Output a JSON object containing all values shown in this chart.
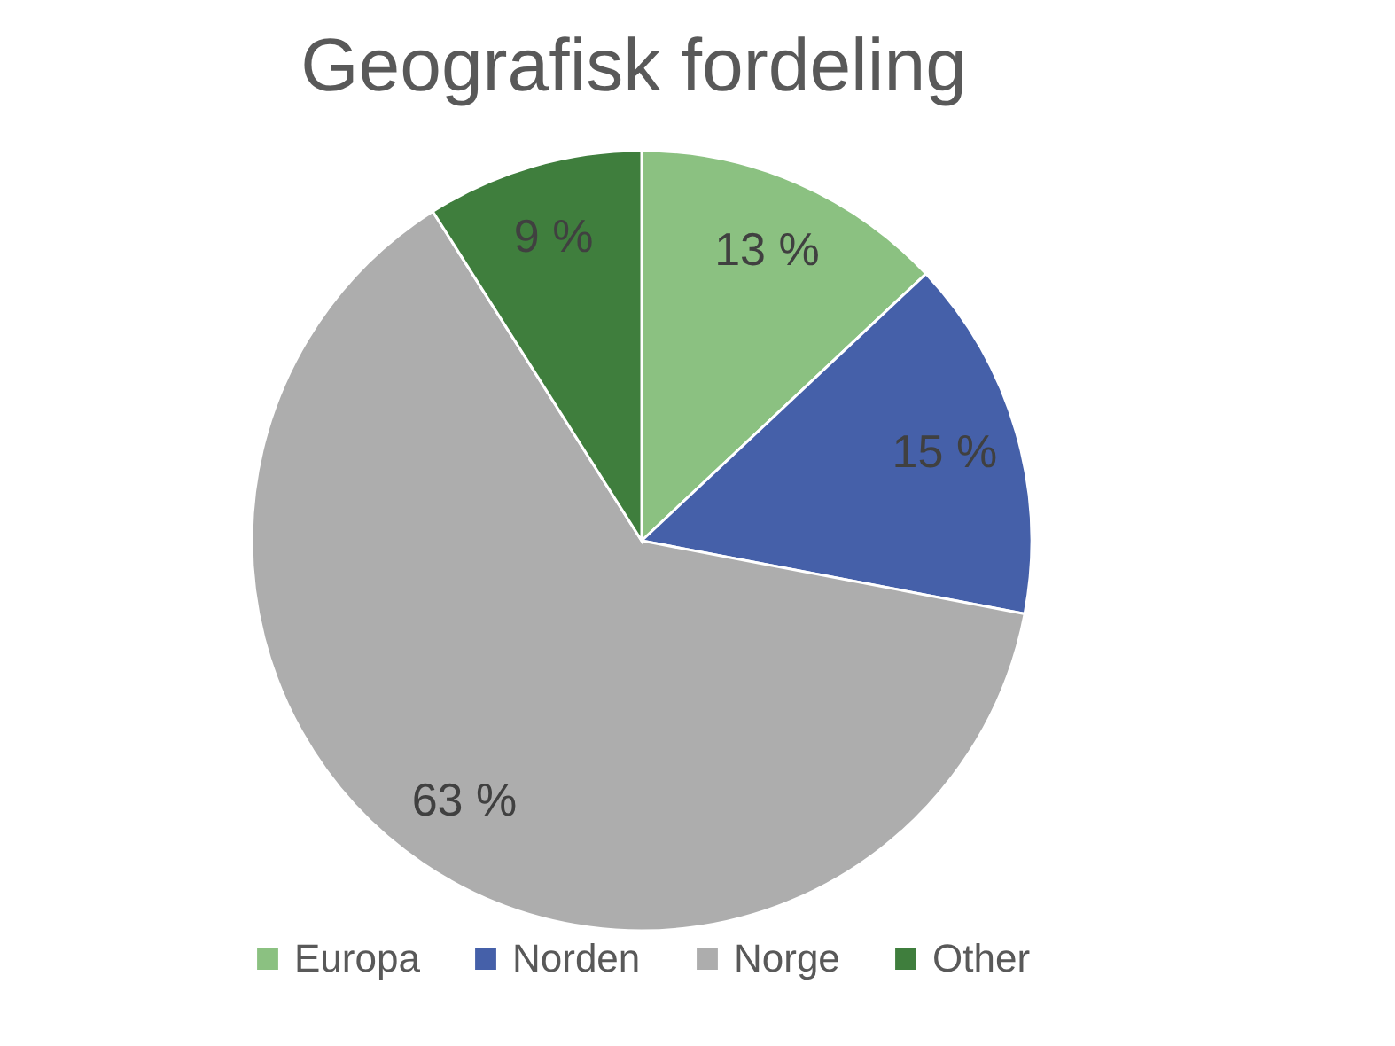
{
  "chart_data": {
    "type": "pie",
    "title": "Geografisk fordeling",
    "categories": [
      "Europa",
      "Norden",
      "Norge",
      "Other"
    ],
    "values": [
      13,
      15,
      63,
      9
    ],
    "value_labels": [
      "13 %",
      "15 %",
      "63 %",
      "9 %"
    ],
    "colors": [
      "#8bc181",
      "#4560a9",
      "#adadad",
      "#3f7e3d"
    ],
    "legend": "bottom"
  }
}
